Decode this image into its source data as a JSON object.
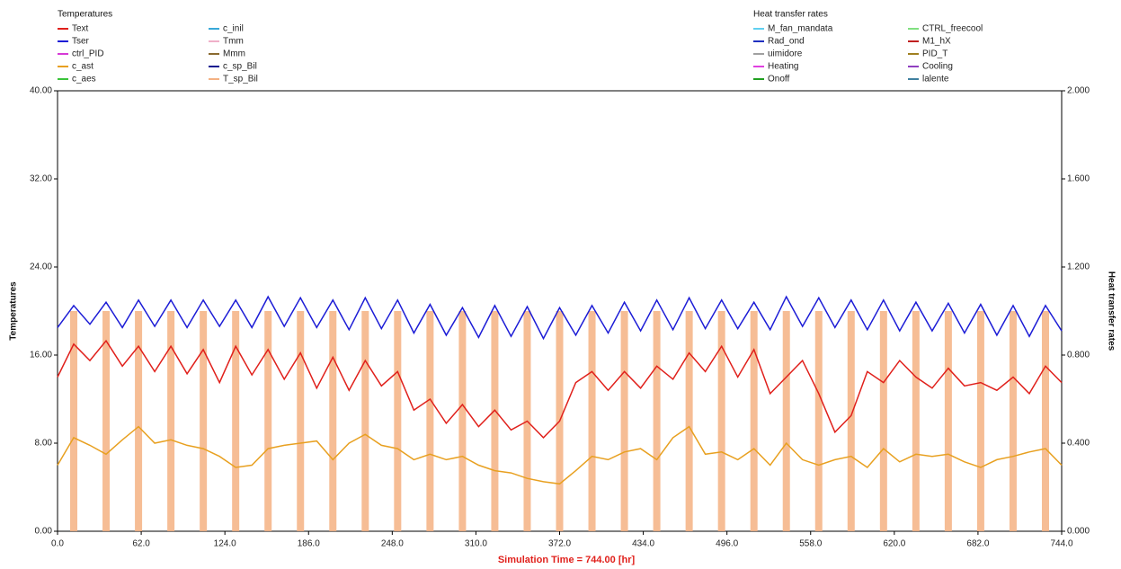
{
  "chart_data": {
    "type": "line",
    "legend_title": "Temperatures",
    "legend2_title": "Heat transfer rates",
    "ylabel": "Temperatures",
    "y2label": "Heat transfer rates",
    "xlabel": "Simulation Time = 744.00 [hr]",
    "xlim": [
      0,
      744
    ],
    "xticks": [
      {
        "value": 0,
        "label": "0.0"
      },
      {
        "value": 62,
        "label": "62.0"
      },
      {
        "value": 124,
        "label": "124.0"
      },
      {
        "value": 186,
        "label": "186.0"
      },
      {
        "value": 248,
        "label": "248.0"
      },
      {
        "value": 310,
        "label": "310.0"
      },
      {
        "value": 372,
        "label": "372.0"
      },
      {
        "value": 434,
        "label": "434.0"
      },
      {
        "value": 496,
        "label": "496.0"
      },
      {
        "value": 558,
        "label": "558.0"
      },
      {
        "value": 620,
        "label": "620.0"
      },
      {
        "value": 682,
        "label": "682.0"
      },
      {
        "value": 744,
        "label": "744.0"
      }
    ],
    "ylim": [
      0,
      40
    ],
    "yticks": [
      {
        "value": 0,
        "label": "0.00"
      },
      {
        "value": 8,
        "label": "8.00"
      },
      {
        "value": 16,
        "label": "16.00"
      },
      {
        "value": 24,
        "label": "24.00"
      },
      {
        "value": 32,
        "label": "32.00"
      },
      {
        "value": 40,
        "label": "40.00"
      }
    ],
    "y2lim": [
      0,
      2
    ],
    "y2ticks": [
      {
        "value": 0,
        "label": "0.000"
      },
      {
        "value": 0.4,
        "label": "0.400"
      },
      {
        "value": 0.8,
        "label": "0.800"
      },
      {
        "value": 1.2,
        "label": "1.200"
      },
      {
        "value": 1.6,
        "label": "1.600"
      },
      {
        "value": 2,
        "label": "2.000"
      }
    ],
    "x": [
      0,
      12,
      24,
      36,
      48,
      60,
      72,
      84,
      96,
      108,
      120,
      132,
      144,
      156,
      168,
      180,
      192,
      204,
      216,
      228,
      240,
      252,
      264,
      276,
      288,
      300,
      312,
      324,
      336,
      348,
      360,
      372,
      384,
      396,
      408,
      420,
      432,
      444,
      456,
      468,
      480,
      492,
      504,
      516,
      528,
      540,
      552,
      564,
      576,
      588,
      600,
      612,
      624,
      636,
      648,
      660,
      672,
      684,
      696,
      708,
      720,
      732,
      744
    ],
    "series": [
      {
        "name": "Text",
        "color": "#e0201b",
        "values": [
          14,
          17,
          15.5,
          17.3,
          15,
          16.8,
          14.5,
          16.8,
          14.3,
          16.5,
          13.5,
          16.8,
          14.2,
          16.5,
          13.8,
          16.2,
          13,
          15.8,
          12.8,
          15.5,
          13.2,
          14.5,
          11,
          12,
          9.8,
          11.5,
          9.5,
          11,
          9.2,
          10,
          8.5,
          10,
          13.5,
          14.5,
          12.8,
          14.5,
          13,
          15,
          13.8,
          16.2,
          14.5,
          16.8,
          14,
          16.5,
          12.5,
          14,
          15.5,
          12.5,
          9,
          10.5,
          14.5,
          13.5,
          15.5,
          14,
          13,
          14.8,
          13.2,
          13.5,
          12.8,
          14,
          12.5,
          15,
          13.5
        ]
      },
      {
        "name": "Tser",
        "color": "#1c1cd6",
        "values": [
          18.5,
          20.5,
          18.8,
          20.8,
          18.5,
          21,
          18.6,
          21,
          18.5,
          21,
          18.6,
          21,
          18.5,
          21.3,
          18.6,
          21.2,
          18.5,
          21,
          18.3,
          21.2,
          18.4,
          21,
          18,
          20.6,
          17.8,
          20.3,
          17.6,
          20.5,
          17.7,
          20.4,
          17.5,
          20.3,
          17.8,
          20.5,
          18,
          20.8,
          18.2,
          21,
          18.3,
          21.2,
          18.4,
          21,
          18.4,
          20.8,
          18.3,
          21.3,
          18.6,
          21.2,
          18.5,
          21,
          18.3,
          21,
          18.2,
          20.8,
          18.2,
          20.7,
          18,
          20.6,
          17.8,
          20.5,
          17.7,
          20.5,
          18.2
        ]
      },
      {
        "name": "ctrl_PID",
        "color": "#d63ad6"
      },
      {
        "name": "c_ast",
        "color": "#e8a020",
        "values": [
          6,
          8.5,
          7.8,
          7,
          8.3,
          9.5,
          8,
          8.3,
          7.8,
          7.5,
          6.8,
          5.8,
          6,
          7.5,
          7.8,
          8,
          8.2,
          6.5,
          8,
          8.8,
          7.8,
          7.5,
          6.5,
          7,
          6.5,
          6.8,
          6,
          5.5,
          5.3,
          4.8,
          4.5,
          4.3,
          5.5,
          6.8,
          6.5,
          7.2,
          7.5,
          6.5,
          8.5,
          9.5,
          7,
          7.2,
          6.5,
          7.5,
          6,
          8,
          6.5,
          6,
          6.5,
          6.8,
          5.8,
          7.5,
          6.3,
          7,
          6.8,
          7,
          6.3,
          5.8,
          6.5,
          6.8,
          7.2,
          7.5,
          6
        ]
      },
      {
        "name": "c_aes",
        "color": "#3ac43a"
      },
      {
        "name": "c_inil",
        "color": "#38a8d8"
      },
      {
        "name": "Tmm",
        "color": "#f0b0c8"
      },
      {
        "name": "Mmm",
        "color": "#8a6a30"
      },
      {
        "name": "c_sp_Bil",
        "color": "#101890"
      },
      {
        "name": "T_sp_Bil",
        "color": "#f4b183",
        "style": "bar",
        "x": [
          12,
          36,
          60,
          84,
          108,
          132,
          156,
          180,
          204,
          228,
          252,
          276,
          300,
          324,
          348,
          372,
          396,
          420,
          444,
          468,
          492,
          516,
          540,
          564,
          588,
          612,
          636,
          660,
          684,
          708,
          732
        ],
        "values": [
          20,
          20,
          20,
          20,
          20,
          20,
          20,
          20,
          20,
          20,
          20,
          20,
          20,
          20,
          20,
          20,
          20,
          20,
          20,
          20,
          20,
          20,
          20,
          20,
          20,
          20,
          20,
          20,
          20,
          20,
          20
        ]
      }
    ],
    "series2": [
      {
        "name": "M_fan_mandata",
        "color": "#60d0f0",
        "axis": "y2"
      },
      {
        "name": "CTRL_freecool",
        "color": "#80e080",
        "axis": "y2"
      },
      {
        "name": "Rad_ond",
        "color": "#2030c0",
        "axis": "y2"
      },
      {
        "name": "M1_hX",
        "color": "#c02020",
        "axis": "y2"
      },
      {
        "name": "uimidore",
        "color": "#a0a0a0",
        "axis": "y2"
      },
      {
        "name": "PID_T",
        "color": "#a08020",
        "axis": "y2"
      },
      {
        "name": "Heating",
        "color": "#e040e0",
        "axis": "y2"
      },
      {
        "name": "Cooling",
        "color": "#9040c0",
        "axis": "y2"
      },
      {
        "name": "Onoff",
        "color": "#20a020",
        "axis": "y2"
      },
      {
        "name": "lalente",
        "color": "#4080a0",
        "axis": "y2"
      }
    ]
  }
}
